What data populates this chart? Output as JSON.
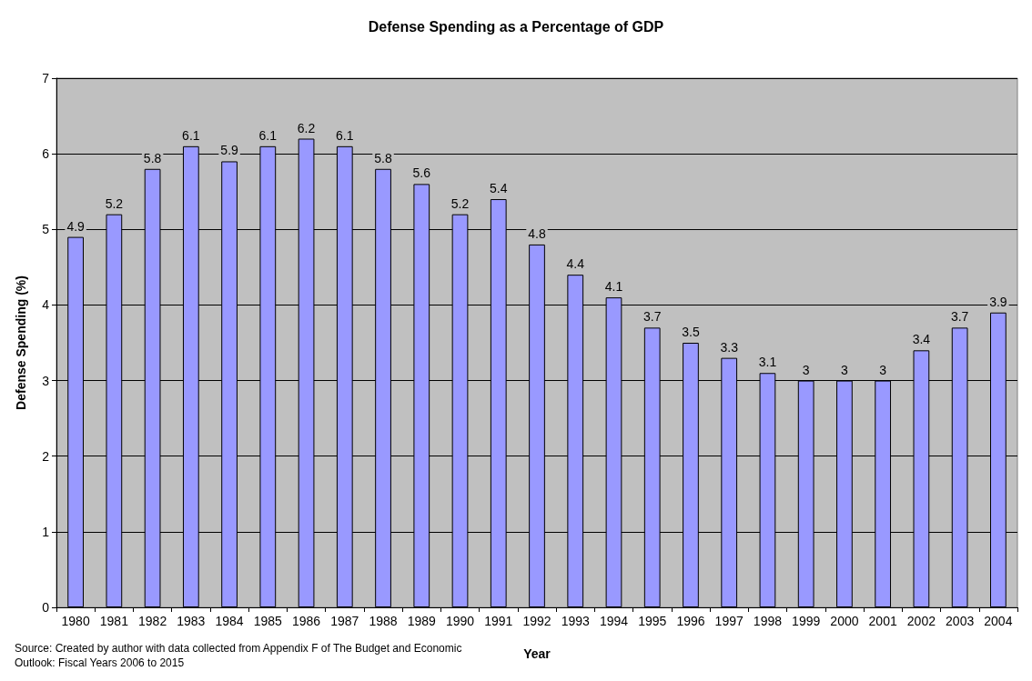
{
  "chart_data": {
    "type": "bar",
    "title": "Defense Spending as a Percentage of GDP",
    "xlabel": "Year",
    "ylabel": "Defense Spending (%)",
    "categories": [
      "1980",
      "1981",
      "1982",
      "1983",
      "1984",
      "1985",
      "1986",
      "1987",
      "1988",
      "1989",
      "1990",
      "1991",
      "1992",
      "1993",
      "1994",
      "1995",
      "1996",
      "1997",
      "1998",
      "1999",
      "2000",
      "2001",
      "2002",
      "2003",
      "2004"
    ],
    "values": [
      4.9,
      5.2,
      5.8,
      6.1,
      5.9,
      6.1,
      6.2,
      6.1,
      5.8,
      5.6,
      5.2,
      5.4,
      4.8,
      4.4,
      4.1,
      3.7,
      3.5,
      3.3,
      3.1,
      3,
      3,
      3,
      3.4,
      3.7,
      3.9
    ],
    "color": "#9999ff",
    "ylim": [
      0,
      7
    ],
    "yticks": [
      0,
      1,
      2,
      3,
      4,
      5,
      6,
      7
    ],
    "grid": "y",
    "data_labels": true,
    "annotations": [
      "Source: Created by author with data collected from Appendix F of The Budget and Economic Outlook: Fiscal Years 2006 to 2015"
    ]
  }
}
